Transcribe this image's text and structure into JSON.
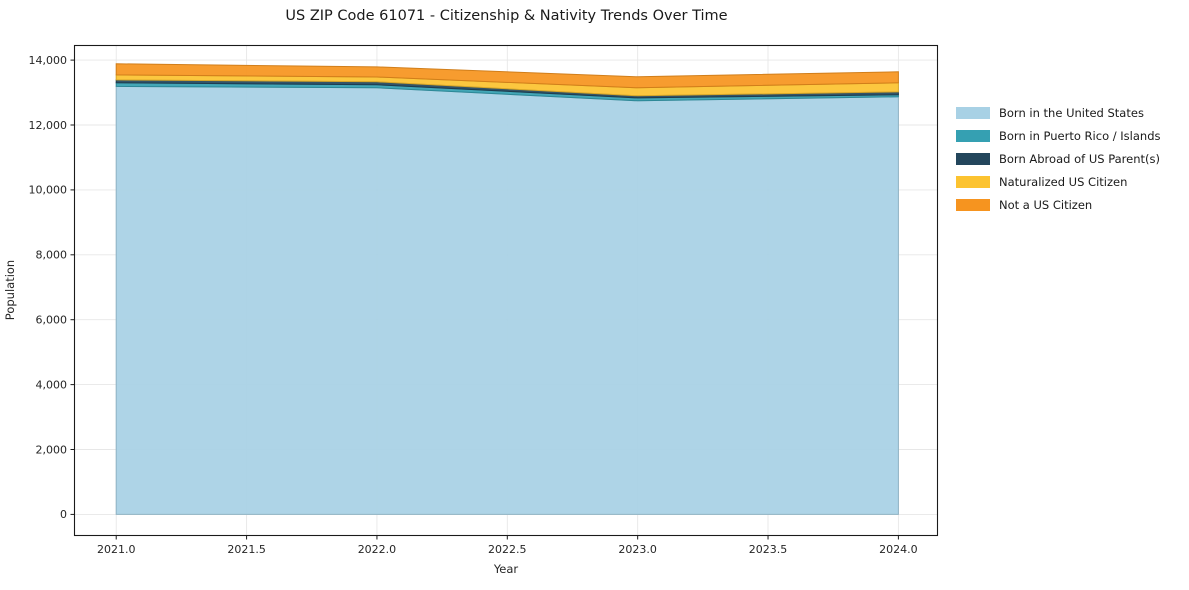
{
  "chart_data": {
    "type": "area",
    "stacked": true,
    "title": "US ZIP Code 61071 - Citizenship & Nativity Trends Over Time",
    "xlabel": "Year",
    "ylabel": "Population",
    "x": [
      2021,
      2022,
      2023,
      2024
    ],
    "series": [
      {
        "name": "Born in the United States",
        "color": "#a8d1e5",
        "values": [
          13190,
          13145,
          12745,
          12870
        ]
      },
      {
        "name": "Born in Puerto Rico / Islands",
        "color": "#35a0b2",
        "values": [
          110,
          95,
          90,
          60
        ]
      },
      {
        "name": "Born Abroad of US Parent(s)",
        "color": "#23465c",
        "values": [
          90,
          90,
          65,
          90
        ]
      },
      {
        "name": "Naturalized US Citizen",
        "color": "#fcc330",
        "values": [
          155,
          150,
          245,
          280
        ]
      },
      {
        "name": "Not a US Citizen",
        "color": "#f6941f",
        "values": [
          340,
          310,
          340,
          340
        ]
      }
    ],
    "x_ticks": [
      "2021.0",
      "2021.5",
      "2022.0",
      "2022.5",
      "2023.0",
      "2023.5",
      "2024.0"
    ],
    "x_tick_values": [
      2021,
      2021.5,
      2022,
      2022.5,
      2023,
      2023.5,
      2024
    ],
    "y_ticks": [
      "0",
      "2,000",
      "4,000",
      "6,000",
      "8,000",
      "10,000",
      "12,000",
      "14,000"
    ],
    "y_tick_values": [
      0,
      2000,
      4000,
      6000,
      8000,
      10000,
      12000,
      14000
    ],
    "xlim": [
      2020.84,
      2024.15
    ],
    "ylim": [
      -650,
      14450
    ],
    "grid": true,
    "grid_color": "#e7e7e7",
    "spine_color": "#1a1a1a",
    "legend_position": "right"
  }
}
